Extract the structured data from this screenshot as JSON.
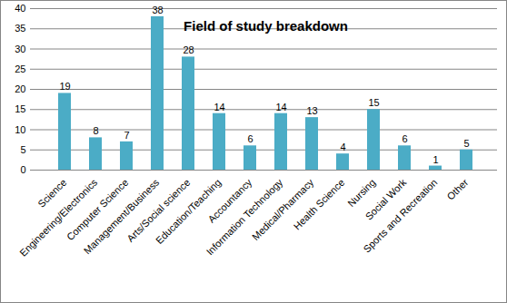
{
  "chart_data": {
    "type": "bar",
    "title": "Field of study breakdown",
    "categories": [
      "Science",
      "Engineering/Electronics",
      "Computer Science",
      "Management/Business",
      "Arts/Social science",
      "Education/Teaching",
      "Accountancy",
      "Information Technology",
      "Medical/Pharmacy",
      "Health Science",
      "Nursing",
      "Social Work",
      "Sports and Recreation",
      "Other"
    ],
    "values": [
      19,
      8,
      7,
      38,
      28,
      14,
      6,
      14,
      13,
      4,
      15,
      6,
      1,
      5
    ],
    "color": "#4bacc6",
    "ylim": [
      0,
      40
    ],
    "yticks": [
      0,
      5,
      10,
      15,
      20,
      25,
      30,
      35,
      40
    ],
    "grid": true,
    "data_labels": true
  }
}
